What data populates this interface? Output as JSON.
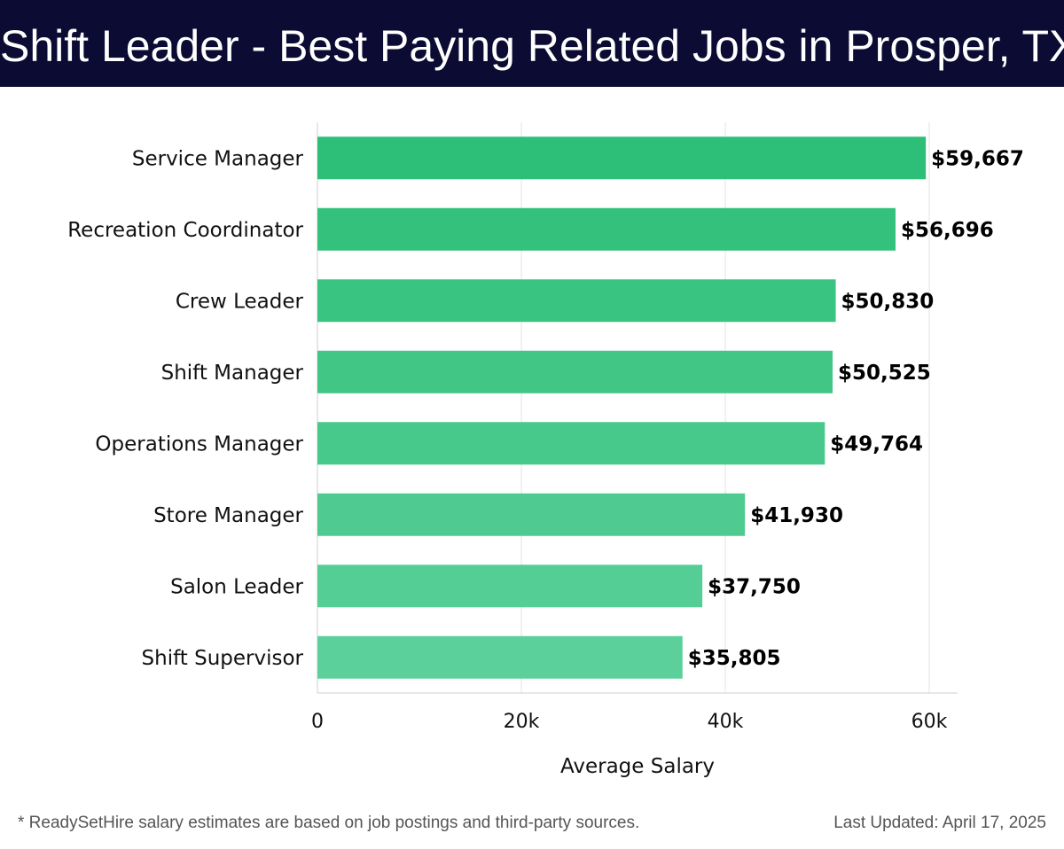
{
  "header": {
    "title": "Shift Leader - Best Paying Related Jobs in Prosper, TX"
  },
  "footer": {
    "note": "* ReadySetHire salary estimates are based on job postings and third-party sources.",
    "updated": "Last Updated: April 17, 2025"
  },
  "colors": {
    "header_bg": "#0b0b33",
    "bar_top": "#2dbf77",
    "bar_bottom": "#5cd09b"
  },
  "chart_data": {
    "type": "bar",
    "orientation": "horizontal",
    "categories": [
      "Service Manager",
      "Recreation Coordinator",
      "Crew Leader",
      "Shift Manager",
      "Operations Manager",
      "Store Manager",
      "Salon Leader",
      "Shift Supervisor"
    ],
    "values": [
      59667,
      56696,
      50830,
      50525,
      49764,
      41930,
      37750,
      35805
    ],
    "value_labels": [
      "$59,667",
      "$56,696",
      "$50,830",
      "$50,525",
      "$49,764",
      "$41,930",
      "$37,750",
      "$35,805"
    ],
    "xlabel": "Average Salary",
    "ylabel": "",
    "xlim": [
      0,
      63000
    ],
    "xticks": [
      0,
      20000,
      40000,
      60000
    ],
    "xtick_labels": [
      "0",
      "20k",
      "40k",
      "60k"
    ],
    "grid": true
  }
}
